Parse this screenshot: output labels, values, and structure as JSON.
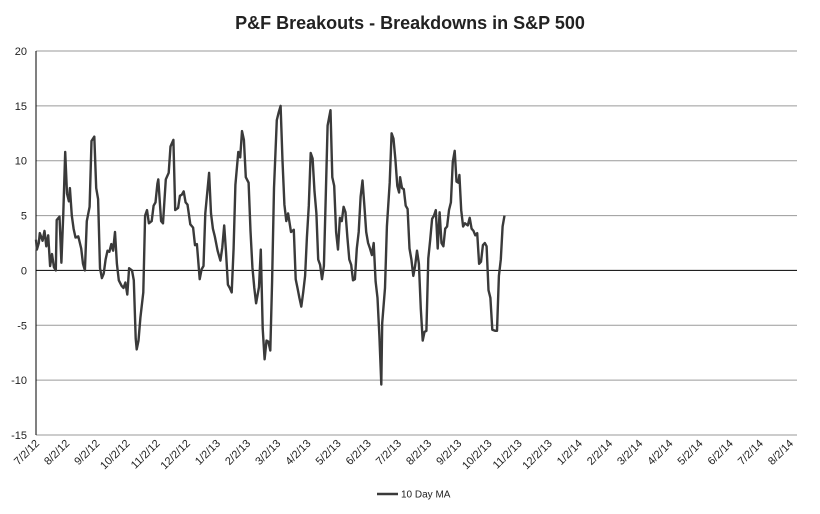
{
  "chart_data": {
    "type": "line",
    "title": "P&F Breakouts - Breakdowns in S&P 500",
    "xlabel": "",
    "ylabel": "",
    "ylim": [
      -15,
      20
    ],
    "y_ticks": [
      "20",
      "15",
      "10",
      "5",
      "0",
      "-5",
      "-10",
      "-15"
    ],
    "x_tick_labels": [
      "7/2/12",
      "8/2/12",
      "9/2/12",
      "10/2/12",
      "11/2/12",
      "12/2/12",
      "1/2/13",
      "2/2/13",
      "3/2/13",
      "4/2/13",
      "5/2/13",
      "6/2/13",
      "7/2/13",
      "8/2/13",
      "9/2/13",
      "10/2/13",
      "11/2/13",
      "12/2/13",
      "1/2/14",
      "2/2/14",
      "3/2/14",
      "4/2/14",
      "5/2/14",
      "6/2/14",
      "7/2/14",
      "8/2/14"
    ],
    "grid": true,
    "legend_position": "bottom",
    "series": [
      {
        "name": "10 Day MA",
        "color": "#3a3a3a",
        "points": [
          [
            "2012-07-02",
            2.8
          ],
          [
            "2012-07-03",
            1.9
          ],
          [
            "2012-07-05",
            2.5
          ],
          [
            "2012-07-06",
            3.4
          ],
          [
            "2012-07-09",
            2.7
          ],
          [
            "2012-07-11",
            3.6
          ],
          [
            "2012-07-13",
            2.2
          ],
          [
            "2012-07-15",
            3.2
          ],
          [
            "2012-07-17",
            0.4
          ],
          [
            "2012-07-19",
            1.5
          ],
          [
            "2012-07-21",
            0.3
          ],
          [
            "2012-07-23",
            0.0
          ],
          [
            "2012-07-24",
            4.6
          ],
          [
            "2012-07-27",
            4.9
          ],
          [
            "2012-07-29",
            0.7
          ],
          [
            "2012-07-31",
            5.2
          ],
          [
            "2012-08-02",
            10.8
          ],
          [
            "2012-08-04",
            7.0
          ],
          [
            "2012-08-06",
            6.3
          ],
          [
            "2012-08-07",
            7.5
          ],
          [
            "2012-08-09",
            5.0
          ],
          [
            "2012-08-11",
            3.8
          ],
          [
            "2012-08-13",
            3.0
          ],
          [
            "2012-08-16",
            3.1
          ],
          [
            "2012-08-19",
            2.0
          ],
          [
            "2012-08-21",
            0.6
          ],
          [
            "2012-08-23",
            0.0
          ],
          [
            "2012-08-25",
            4.5
          ],
          [
            "2012-08-28",
            5.8
          ],
          [
            "2012-08-30",
            11.8
          ],
          [
            "2012-09-02",
            12.2
          ],
          [
            "2012-09-04",
            7.5
          ],
          [
            "2012-09-06",
            6.5
          ],
          [
            "2012-09-08",
            0.2
          ],
          [
            "2012-09-10",
            -0.7
          ],
          [
            "2012-09-12",
            -0.3
          ],
          [
            "2012-09-14",
            1.0
          ],
          [
            "2012-09-16",
            1.8
          ],
          [
            "2012-09-18",
            1.7
          ],
          [
            "2012-09-20",
            2.4
          ],
          [
            "2012-09-22",
            1.8
          ],
          [
            "2012-09-24",
            3.5
          ],
          [
            "2012-09-26",
            0.6
          ],
          [
            "2012-09-28",
            -0.9
          ],
          [
            "2012-10-01",
            -1.4
          ],
          [
            "2012-10-03",
            -1.6
          ],
          [
            "2012-10-05",
            -1.1
          ],
          [
            "2012-10-07",
            -2.2
          ],
          [
            "2012-10-09",
            0.2
          ],
          [
            "2012-10-12",
            0.0
          ],
          [
            "2012-10-14",
            -0.9
          ],
          [
            "2012-10-16",
            -6.2
          ],
          [
            "2012-10-17",
            -7.2
          ],
          [
            "2012-10-19",
            -6.4
          ],
          [
            "2012-10-21",
            -4.3
          ],
          [
            "2012-10-24",
            -2.0
          ],
          [
            "2012-10-26",
            5.0
          ],
          [
            "2012-10-28",
            5.5
          ],
          [
            "2012-10-30",
            4.3
          ],
          [
            "2012-11-02",
            4.5
          ],
          [
            "2012-11-04",
            5.9
          ],
          [
            "2012-11-06",
            6.2
          ],
          [
            "2012-11-08",
            7.9
          ],
          [
            "2012-11-09",
            8.3
          ],
          [
            "2012-11-12",
            4.5
          ],
          [
            "2012-11-14",
            4.3
          ],
          [
            "2012-11-17",
            8.3
          ],
          [
            "2012-11-20",
            8.9
          ],
          [
            "2012-11-22",
            11.3
          ],
          [
            "2012-11-25",
            11.9
          ],
          [
            "2012-11-27",
            5.5
          ],
          [
            "2012-11-30",
            5.7
          ],
          [
            "2012-12-02",
            6.8
          ],
          [
            "2012-12-04",
            6.9
          ],
          [
            "2012-12-06",
            7.2
          ],
          [
            "2012-12-08",
            6.2
          ],
          [
            "2012-12-10",
            6.0
          ],
          [
            "2012-12-13",
            4.2
          ],
          [
            "2012-12-16",
            3.9
          ],
          [
            "2012-12-18",
            2.3
          ],
          [
            "2012-12-20",
            2.4
          ],
          [
            "2012-12-23",
            -0.8
          ],
          [
            "2012-12-25",
            0.1
          ],
          [
            "2012-12-27",
            0.4
          ],
          [
            "2012-12-29",
            5.2
          ],
          [
            "2013-01-02",
            8.9
          ],
          [
            "2013-01-04",
            5.2
          ],
          [
            "2013-01-06",
            3.8
          ],
          [
            "2013-01-08",
            3.1
          ],
          [
            "2013-01-11",
            1.8
          ],
          [
            "2013-01-14",
            0.9
          ],
          [
            "2013-01-16",
            2.1
          ],
          [
            "2013-01-18",
            4.1
          ],
          [
            "2013-01-20",
            1.7
          ],
          [
            "2013-01-22",
            -1.3
          ],
          [
            "2013-01-24",
            -1.6
          ],
          [
            "2013-01-26",
            -2.0
          ],
          [
            "2013-01-28",
            2.0
          ],
          [
            "2013-01-30",
            7.8
          ],
          [
            "2013-02-02",
            10.8
          ],
          [
            "2013-02-04",
            10.3
          ],
          [
            "2013-02-06",
            12.7
          ],
          [
            "2013-02-08",
            11.9
          ],
          [
            "2013-02-10",
            8.5
          ],
          [
            "2013-02-13",
            8.0
          ],
          [
            "2013-02-15",
            3.6
          ],
          [
            "2013-02-17",
            0.3
          ],
          [
            "2013-02-19",
            -1.6
          ],
          [
            "2013-02-21",
            -3.0
          ],
          [
            "2013-02-24",
            -1.5
          ],
          [
            "2013-02-26",
            1.9
          ],
          [
            "2013-02-28",
            -5.3
          ],
          [
            "2013-03-02",
            -8.1
          ],
          [
            "2013-03-04",
            -6.4
          ],
          [
            "2013-03-06",
            -6.5
          ],
          [
            "2013-03-08",
            -7.3
          ],
          [
            "2013-03-10",
            -1.0
          ],
          [
            "2013-03-12",
            7.5
          ],
          [
            "2013-03-15",
            13.7
          ],
          [
            "2013-03-17",
            14.4
          ],
          [
            "2013-03-19",
            15.0
          ],
          [
            "2013-03-21",
            10.0
          ],
          [
            "2013-03-23",
            6.0
          ],
          [
            "2013-03-25",
            4.5
          ],
          [
            "2013-03-27",
            5.2
          ],
          [
            "2013-03-30",
            3.5
          ],
          [
            "2013-04-02",
            3.7
          ],
          [
            "2013-04-04",
            -0.8
          ],
          [
            "2013-04-06",
            -1.6
          ],
          [
            "2013-04-08",
            -2.5
          ],
          [
            "2013-04-10",
            -3.3
          ],
          [
            "2013-04-12",
            -2.0
          ],
          [
            "2013-04-14",
            -0.5
          ],
          [
            "2013-04-16",
            3.0
          ],
          [
            "2013-04-18",
            5.9
          ],
          [
            "2013-04-20",
            10.7
          ],
          [
            "2013-04-22",
            10.2
          ],
          [
            "2013-04-24",
            7.2
          ],
          [
            "2013-04-26",
            5.2
          ],
          [
            "2013-04-28",
            1.0
          ],
          [
            "2013-04-30",
            0.5
          ],
          [
            "2013-05-02",
            -0.8
          ],
          [
            "2013-05-04",
            0.4
          ],
          [
            "2013-05-06",
            6.9
          ],
          [
            "2013-05-08",
            13.2
          ],
          [
            "2013-05-11",
            14.6
          ],
          [
            "2013-05-13",
            8.5
          ],
          [
            "2013-05-15",
            7.7
          ],
          [
            "2013-05-17",
            3.5
          ],
          [
            "2013-05-19",
            1.9
          ],
          [
            "2013-05-21",
            4.8
          ],
          [
            "2013-05-23",
            4.5
          ],
          [
            "2013-05-25",
            5.8
          ],
          [
            "2013-05-27",
            5.3
          ],
          [
            "2013-05-29",
            3.0
          ],
          [
            "2013-05-31",
            1.0
          ],
          [
            "2013-06-02",
            0.5
          ],
          [
            "2013-06-04",
            -0.9
          ],
          [
            "2013-06-06",
            -0.8
          ],
          [
            "2013-06-08",
            2.0
          ],
          [
            "2013-06-10",
            3.5
          ],
          [
            "2013-06-12",
            6.7
          ],
          [
            "2013-06-14",
            8.2
          ],
          [
            "2013-06-16",
            6.0
          ],
          [
            "2013-06-18",
            3.5
          ],
          [
            "2013-06-20",
            2.5
          ],
          [
            "2013-06-22",
            2.0
          ],
          [
            "2013-06-24",
            1.4
          ],
          [
            "2013-06-26",
            2.5
          ],
          [
            "2013-06-28",
            -1.0
          ],
          [
            "2013-06-30",
            -2.5
          ],
          [
            "2013-07-02",
            -6.0
          ],
          [
            "2013-07-04",
            -10.4
          ],
          [
            "2013-07-05",
            -4.8
          ],
          [
            "2013-07-08",
            -1.6
          ],
          [
            "2013-07-10",
            4.0
          ],
          [
            "2013-07-13",
            8.0
          ],
          [
            "2013-07-15",
            12.5
          ],
          [
            "2013-07-17",
            12.0
          ],
          [
            "2013-07-19",
            10.1
          ],
          [
            "2013-07-21",
            7.7
          ],
          [
            "2013-07-23",
            7.1
          ],
          [
            "2013-07-24",
            8.5
          ],
          [
            "2013-07-26",
            7.5
          ],
          [
            "2013-07-28",
            7.4
          ],
          [
            "2013-07-30",
            5.9
          ],
          [
            "2013-08-01",
            5.6
          ],
          [
            "2013-08-03",
            2.0
          ],
          [
            "2013-08-05",
            1.0
          ],
          [
            "2013-08-07",
            -0.5
          ],
          [
            "2013-08-09",
            0.4
          ],
          [
            "2013-08-11",
            1.8
          ],
          [
            "2013-08-13",
            0.6
          ],
          [
            "2013-08-15",
            -3.5
          ],
          [
            "2013-08-17",
            -6.4
          ],
          [
            "2013-08-19",
            -5.6
          ],
          [
            "2013-08-21",
            -5.5
          ],
          [
            "2013-08-23",
            1.1
          ],
          [
            "2013-08-25",
            2.8
          ],
          [
            "2013-08-27",
            4.7
          ],
          [
            "2013-08-29",
            5.0
          ],
          [
            "2013-08-31",
            5.5
          ],
          [
            "2013-09-02",
            2.0
          ],
          [
            "2013-09-04",
            5.3
          ],
          [
            "2013-09-06",
            2.5
          ],
          [
            "2013-09-08",
            2.2
          ],
          [
            "2013-09-10",
            3.8
          ],
          [
            "2013-09-12",
            4.0
          ],
          [
            "2013-09-14",
            5.5
          ],
          [
            "2013-09-16",
            6.2
          ],
          [
            "2013-09-18",
            9.9
          ],
          [
            "2013-09-20",
            10.9
          ],
          [
            "2013-09-22",
            8.1
          ],
          [
            "2013-09-24",
            8.0
          ],
          [
            "2013-09-25",
            8.7
          ],
          [
            "2013-09-27",
            5.5
          ],
          [
            "2013-09-29",
            4.0
          ],
          [
            "2013-10-01",
            4.3
          ],
          [
            "2013-10-04",
            4.1
          ],
          [
            "2013-10-06",
            4.8
          ],
          [
            "2013-10-08",
            3.8
          ],
          [
            "2013-10-10",
            3.6
          ],
          [
            "2013-10-12",
            3.2
          ],
          [
            "2013-10-14",
            3.4
          ],
          [
            "2013-10-16",
            0.6
          ],
          [
            "2013-10-18",
            0.8
          ],
          [
            "2013-10-20",
            2.3
          ],
          [
            "2013-10-22",
            2.5
          ],
          [
            "2013-10-24",
            2.2
          ],
          [
            "2013-10-26",
            -1.8
          ],
          [
            "2013-10-28",
            -2.5
          ],
          [
            "2013-10-30",
            -5.4
          ],
          [
            "2013-11-02",
            -5.5
          ],
          [
            "2013-11-04",
            -5.5
          ],
          [
            "2013-11-06",
            -0.5
          ],
          [
            "2013-11-08",
            1.0
          ],
          [
            "2013-11-10",
            4.0
          ],
          [
            "2013-11-12",
            5.0
          ]
        ]
      }
    ]
  }
}
